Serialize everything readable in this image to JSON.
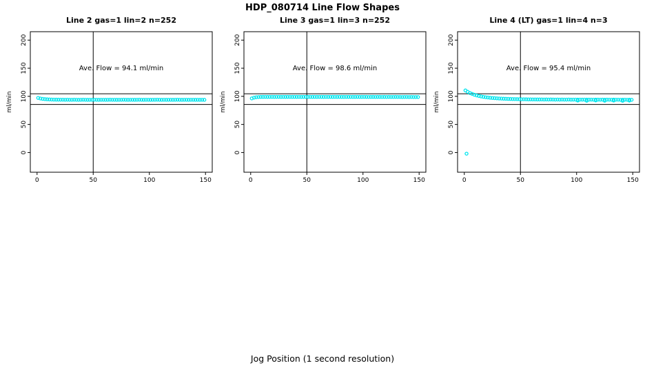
{
  "chart_data": {
    "type": "scatter",
    "title": "HDP_080714  Line Flow Shapes",
    "xlabel": "Jog Position (1 second resolution)",
    "ylabel": "ml/min",
    "xlim": [
      -6,
      156
    ],
    "ylim": [
      -35,
      215
    ],
    "x_ticks": [
      0,
      50,
      100,
      150
    ],
    "y_ticks": [
      0,
      50,
      100,
      150,
      200
    ],
    "grid": false,
    "legend": "none",
    "point_color": "#00e5ee",
    "vline_x": 50,
    "hlines": [
      104.5,
      85.5
    ],
    "x": [
      1,
      3,
      5,
      7,
      9,
      11,
      13,
      15,
      17,
      19,
      21,
      23,
      25,
      27,
      29,
      31,
      33,
      35,
      37,
      39,
      41,
      43,
      45,
      47,
      49,
      51,
      53,
      55,
      57,
      59,
      61,
      63,
      65,
      67,
      69,
      71,
      73,
      75,
      77,
      79,
      81,
      83,
      85,
      87,
      89,
      91,
      93,
      95,
      97,
      99,
      101,
      103,
      105,
      107,
      109,
      111,
      113,
      115,
      117,
      119,
      121,
      123,
      125,
      127,
      129,
      131,
      133,
      135,
      137,
      139,
      141,
      143,
      145,
      147,
      149
    ],
    "panels": [
      {
        "title": "Line 2 gas=1 lin=2 n=252",
        "annotation": "Ave. Flow =  94.1  ml/min",
        "ave_flow": 94.1,
        "y": [
          97.2,
          96.2,
          95.5,
          95.0,
          94.7,
          94.5,
          94.3,
          94.2,
          94.1,
          94.1,
          94.0,
          94.0,
          93.9,
          94.0,
          93.9,
          93.9,
          94.0,
          93.9,
          93.8,
          93.9,
          94.0,
          93.9,
          93.8,
          93.9,
          93.9,
          94.0,
          93.9,
          93.8,
          93.9,
          93.9,
          93.8,
          93.9,
          94.0,
          93.9,
          93.9,
          93.8,
          93.9,
          93.9,
          94.0,
          93.9,
          93.8,
          93.9,
          93.9,
          93.8,
          93.9,
          94.0,
          93.9,
          93.8,
          93.9,
          93.9,
          93.8,
          93.9,
          93.9,
          94.0,
          93.9,
          93.8,
          93.9,
          93.8,
          93.9,
          93.9,
          93.8,
          93.9,
          94.0,
          93.9,
          93.8,
          93.9,
          93.9,
          93.8,
          93.9,
          93.9,
          93.8,
          93.9,
          93.8,
          93.9,
          93.8
        ],
        "extra_points": []
      },
      {
        "title": "Line 3 gas=1 lin=3 n=252",
        "annotation": "Ave. Flow =  98.6  ml/min",
        "ave_flow": 98.6,
        "y": [
          96.3,
          97.8,
          98.5,
          98.8,
          99.0,
          99.0,
          99.1,
          99.0,
          99.1,
          99.1,
          99.0,
          99.1,
          99.1,
          99.0,
          99.1,
          99.0,
          99.1,
          99.1,
          99.0,
          99.1,
          99.0,
          99.1,
          99.0,
          99.1,
          99.1,
          99.0,
          99.1,
          99.0,
          99.1,
          99.0,
          99.1,
          99.1,
          99.0,
          99.1,
          99.0,
          99.1,
          99.0,
          99.1,
          99.0,
          99.1,
          99.0,
          99.0,
          99.1,
          99.0,
          99.1,
          99.0,
          99.0,
          99.1,
          99.0,
          99.0,
          99.1,
          99.0,
          98.9,
          99.0,
          99.0,
          98.9,
          99.0,
          99.0,
          98.9,
          99.0,
          98.9,
          99.0,
          98.9,
          98.9,
          99.0,
          98.9,
          98.9,
          98.8,
          98.9,
          98.9,
          98.8,
          98.9,
          98.8,
          98.8,
          98.8
        ],
        "extra_points": []
      },
      {
        "title": "Line 4 (LT) gas=1 lin=4 n=3",
        "annotation": "Ave. Flow =  95.4  ml/min",
        "ave_flow": 95.4,
        "y": [
          110.5,
          108.0,
          106.0,
          104.3,
          102.8,
          101.6,
          100.6,
          99.8,
          99.1,
          98.5,
          98.0,
          97.5,
          97.1,
          96.8,
          96.5,
          96.2,
          96.0,
          95.8,
          95.6,
          95.5,
          95.3,
          95.2,
          95.1,
          95.0,
          94.9,
          94.8,
          94.8,
          94.7,
          94.6,
          94.6,
          94.5,
          94.5,
          94.4,
          94.4,
          94.5,
          94.3,
          94.4,
          94.3,
          94.4,
          94.3,
          94.2,
          94.3,
          94.2,
          94.3,
          94.2,
          94.2,
          94.3,
          94.1,
          94.2,
          94.2,
          94.1,
          94.2,
          94.1,
          94.2,
          94.1,
          94.1,
          94.2,
          94.0,
          94.1,
          94.1,
          94.0,
          94.1,
          94.0,
          94.1,
          94.0,
          94.0,
          94.1,
          94.0,
          94.0,
          93.9,
          94.0,
          94.0,
          93.9,
          94.0,
          93.9
        ],
        "extra_points": [
          [
            2,
            -2
          ],
          [
            101,
            92.6
          ],
          [
            109,
            92.2
          ],
          [
            117,
            92.8
          ],
          [
            125,
            92.3
          ],
          [
            133,
            92.6
          ],
          [
            141,
            92.1
          ],
          [
            147,
            92.5
          ]
        ]
      }
    ]
  }
}
